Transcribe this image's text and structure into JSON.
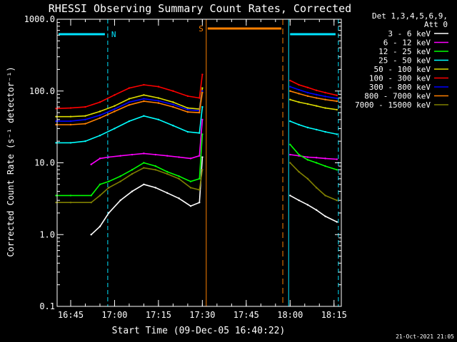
{
  "chart_data": {
    "type": "line",
    "title": "RHESSI Observing Summary Count Rates, Corrected",
    "detector_info": [
      "Det 1,3,4,5,6,9,",
      "Att 0"
    ],
    "xlabel": "Start Time (09-Dec-05 16:40:22)",
    "ylabel": "Corrected Count Rate (s⁻¹ detector⁻¹)",
    "yscale": "log",
    "ylim": [
      0.1,
      1000
    ],
    "y_ticks": [
      "0.1",
      "1.0",
      "10.0",
      "100.0",
      "1000.0"
    ],
    "x_ticks": [
      "16:45",
      "17:00",
      "17:15",
      "17:30",
      "17:45",
      "18:00",
      "18:15"
    ],
    "x_range": [
      "16:40:22",
      "18:17:30"
    ],
    "footer_timestamp": "21-Oct-2021 21:05",
    "intervals": [
      {
        "label": "N",
        "color": "#00e5ff",
        "start": "16:40:22",
        "end": "16:57:40",
        "name": "night"
      },
      {
        "label": "",
        "color": "#00e5ff",
        "start": "17:59:30",
        "end": "18:16:30",
        "name": "night"
      },
      {
        "label": "S",
        "color": "#ff8000",
        "start": "17:31:20",
        "end": "17:57:30",
        "name": "saa"
      }
    ],
    "series": [
      {
        "name": "3 - 6 keV",
        "color": "#ffffff",
        "x": [
          "16:52",
          "16:55",
          "16:58",
          "17:02",
          "17:06",
          "17:10",
          "17:14",
          "17:18",
          "17:22",
          "17:26",
          "17:29",
          "17:30",
          "18:00",
          "18:03",
          "18:06",
          "18:09",
          "18:12",
          "18:16"
        ],
        "y": [
          1.0,
          1.3,
          2.0,
          3.0,
          4.0,
          5.0,
          4.5,
          3.8,
          3.2,
          2.5,
          2.8,
          12,
          3.5,
          3.0,
          2.6,
          2.2,
          1.8,
          1.5
        ]
      },
      {
        "name": "6 - 12 keV",
        "color": "#ff00ff",
        "x": [
          "16:52",
          "16:55",
          "16:58",
          "17:02",
          "17:06",
          "17:10",
          "17:14",
          "17:18",
          "17:22",
          "17:26",
          "17:29",
          "17:30",
          "18:00",
          "18:03",
          "18:06",
          "18:09",
          "18:12",
          "18:16"
        ],
        "y": [
          9.5,
          11.5,
          12.0,
          12.5,
          13.0,
          13.5,
          13.0,
          12.5,
          12.0,
          11.5,
          12.5,
          40,
          13.0,
          12.5,
          12.0,
          11.8,
          11.5,
          11.2
        ]
      },
      {
        "name": "12 - 25 keV",
        "color": "#00ff00",
        "x": [
          "16:40",
          "16:45",
          "16:52",
          "16:55",
          "16:58",
          "17:02",
          "17:06",
          "17:10",
          "17:14",
          "17:18",
          "17:22",
          "17:26",
          "17:29",
          "17:30",
          "18:00",
          "18:03",
          "18:06",
          "18:09",
          "18:12",
          "18:16"
        ],
        "y": [
          3.5,
          3.5,
          3.5,
          5.0,
          5.5,
          6.5,
          8.0,
          10.0,
          9.0,
          7.5,
          6.5,
          5.5,
          6.0,
          25,
          18,
          13,
          11,
          10,
          9,
          8
        ]
      },
      {
        "name": "25 - 50 keV",
        "color": "#00ffff",
        "x": [
          "16:40",
          "16:45",
          "16:50",
          "16:55",
          "17:00",
          "17:05",
          "17:10",
          "17:15",
          "17:20",
          "17:25",
          "17:29",
          "17:30",
          "18:00",
          "18:03",
          "18:06",
          "18:09",
          "18:12",
          "18:16"
        ],
        "y": [
          19,
          19,
          20,
          24,
          30,
          38,
          45,
          40,
          33,
          27,
          26,
          60,
          38,
          34,
          31,
          29,
          27,
          25
        ]
      },
      {
        "name": "50 - 100 keV",
        "color": "#dddd00",
        "x": [
          "16:40",
          "16:45",
          "16:50",
          "16:55",
          "17:00",
          "17:05",
          "17:10",
          "17:15",
          "17:20",
          "17:25",
          "17:29",
          "17:30",
          "18:00",
          "18:03",
          "18:06",
          "18:09",
          "18:12",
          "18:16"
        ],
        "y": [
          44,
          44,
          45,
          52,
          62,
          78,
          88,
          80,
          70,
          58,
          56,
          110,
          76,
          70,
          66,
          62,
          58,
          55
        ]
      },
      {
        "name": "100 - 300 keV",
        "color": "#ff0000",
        "x": [
          "16:40",
          "16:45",
          "16:50",
          "16:55",
          "17:00",
          "17:05",
          "17:10",
          "17:15",
          "17:20",
          "17:25",
          "17:29",
          "17:30",
          "18:00",
          "18:03",
          "18:06",
          "18:09",
          "18:12",
          "18:16"
        ],
        "y": [
          57,
          58,
          60,
          70,
          88,
          110,
          122,
          115,
          100,
          85,
          80,
          170,
          140,
          122,
          112,
          102,
          95,
          87
        ]
      },
      {
        "name": "300 - 800 keV",
        "color": "#0000ff",
        "x": [
          "16:40",
          "16:45",
          "16:50",
          "16:55",
          "17:00",
          "17:05",
          "17:10",
          "17:15",
          "17:20",
          "17:25",
          "17:29",
          "17:30",
          "18:00",
          "18:03",
          "18:06",
          "18:09",
          "18:12",
          "18:16"
        ],
        "y": [
          38,
          38,
          40,
          46,
          56,
          70,
          78,
          73,
          65,
          55,
          53,
          100,
          115,
          104,
          95,
          89,
          84,
          79
        ]
      },
      {
        "name": "800 - 7000 keV",
        "color": "#ff8000",
        "x": [
          "16:40",
          "16:45",
          "16:50",
          "16:55",
          "17:00",
          "17:05",
          "17:10",
          "17:15",
          "17:20",
          "17:25",
          "17:29",
          "17:30",
          "18:00",
          "18:03",
          "18:06",
          "18:09",
          "18:12",
          "18:16"
        ],
        "y": [
          34,
          34,
          35,
          42,
          52,
          64,
          72,
          68,
          60,
          51,
          50,
          95,
          100,
          92,
          85,
          80,
          76,
          72
        ]
      },
      {
        "name": "7000 - 15000 keV",
        "color": "#808000",
        "x": [
          "16:40",
          "16:45",
          "16:52",
          "16:55",
          "16:58",
          "17:02",
          "17:06",
          "17:10",
          "17:14",
          "17:18",
          "17:22",
          "17:26",
          "17:29",
          "17:30",
          "18:00",
          "18:03",
          "18:06",
          "18:09",
          "18:12",
          "18:16"
        ],
        "y": [
          2.8,
          2.8,
          2.8,
          3.5,
          4.5,
          5.5,
          7.0,
          8.5,
          8.0,
          7.0,
          6.0,
          4.5,
          4.2,
          8,
          10,
          7.5,
          6.0,
          4.5,
          3.5,
          3.0
        ]
      }
    ]
  }
}
